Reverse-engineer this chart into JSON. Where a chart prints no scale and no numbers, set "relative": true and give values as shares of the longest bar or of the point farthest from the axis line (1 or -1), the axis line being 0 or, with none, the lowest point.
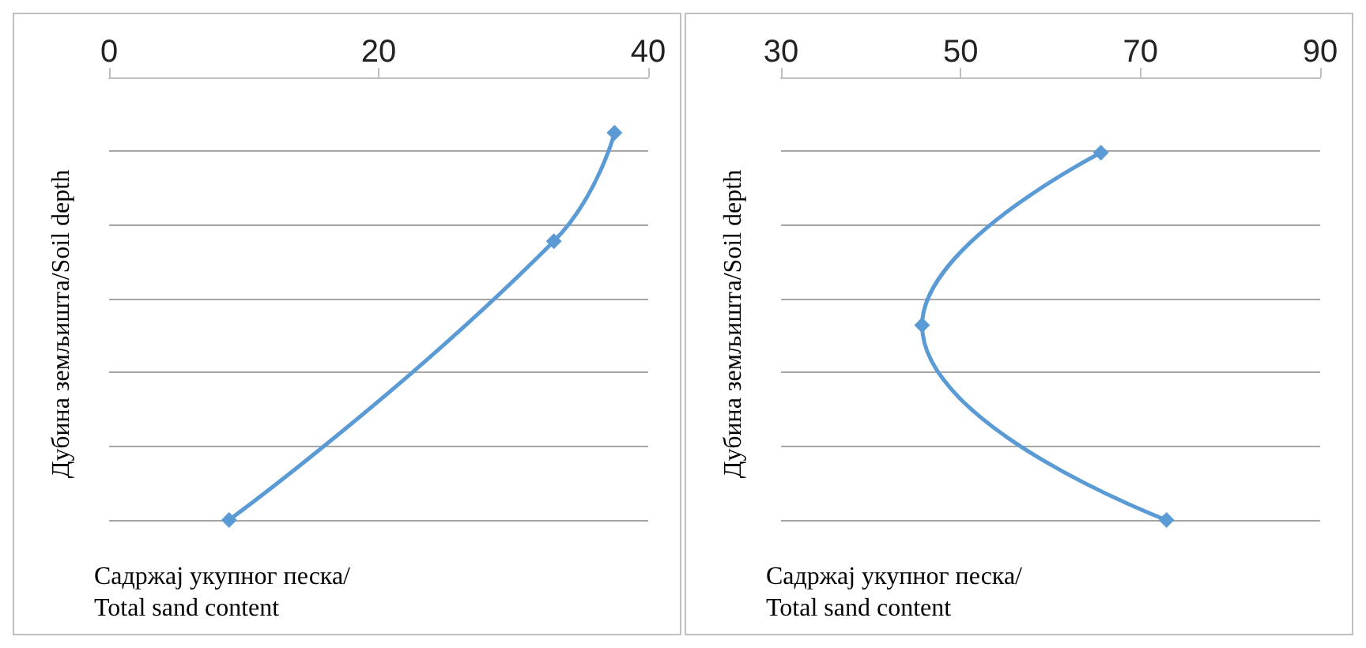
{
  "chart_data": [
    {
      "type": "line",
      "x": [
        37.5,
        33,
        8.9
      ],
      "values": [
        -0.125,
        -0.37,
        -1
      ],
      "relative": true,
      "color": "#5b9bd5",
      "marker": "diamond",
      "line_style": "solid",
      "grid": "y",
      "xlim": [
        0,
        40
      ],
      "xticks": [
        0,
        20,
        40
      ],
      "xlabel": "Садржај укупног песка/Total sand content",
      "ylabel": "Дубина земљишта/Soil depth"
    },
    {
      "type": "line",
      "x": [
        65.6,
        45.7,
        72.9
      ],
      "values": [
        -0.17,
        -0.56,
        -1
      ],
      "relative": true,
      "color": "#5b9bd5",
      "marker": "diamond",
      "line_style": "solid",
      "grid": "y",
      "xlim": [
        30,
        90
      ],
      "xticks": [
        30,
        50,
        70,
        90
      ],
      "xlabel": "Садржај укупног песка/Total sand content",
      "ylabel": "Дубина земљишта/Soil depth"
    }
  ]
}
